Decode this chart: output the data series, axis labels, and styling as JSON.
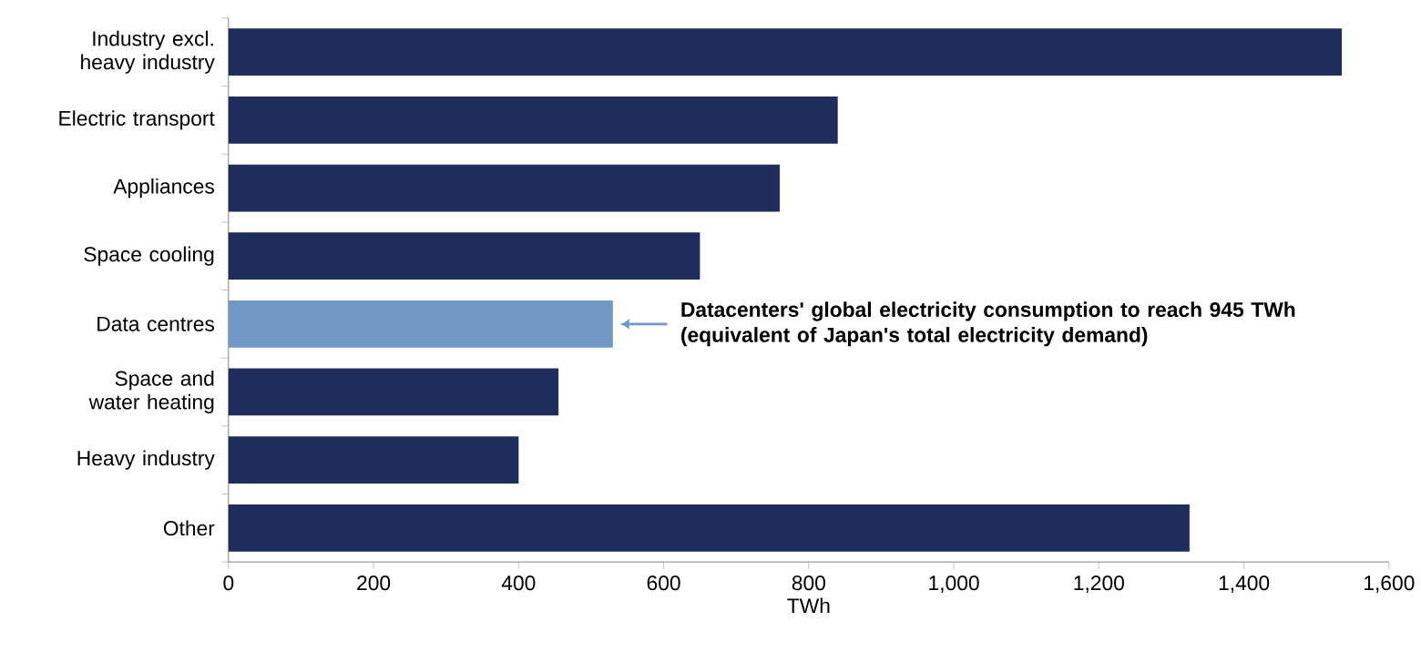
{
  "chart_data": {
    "type": "bar",
    "orientation": "horizontal",
    "categories": [
      "Industry excl. heavy industry",
      "Electric transport",
      "Appliances",
      "Space cooling",
      "Data centres",
      "Space and water heating",
      "Heavy industry",
      "Other"
    ],
    "values": [
      1535,
      840,
      760,
      650,
      530,
      455,
      400,
      1325
    ],
    "colors": [
      "#1f2d5c",
      "#1f2d5c",
      "#1f2d5c",
      "#1f2d5c",
      "#7099c5",
      "#1f2d5c",
      "#1f2d5c",
      "#1f2d5c"
    ],
    "xlabel": "TWh",
    "xlim": [
      0,
      1600
    ],
    "xticks": [
      0,
      200,
      400,
      600,
      800,
      {
        "value": 1000,
        "label": "1,000"
      },
      {
        "value": 1200,
        "label": "1,200"
      },
      {
        "value": 1400,
        "label": "1,400"
      },
      {
        "value": 1600,
        "label": "1,600"
      }
    ],
    "annotations": [
      {
        "text": "Datacenters' global electricity consumption to reach 945 TWh (equivalent of Japan's total electricity demand)",
        "x": 530,
        "y": "Data centres"
      }
    ],
    "grid": false
  }
}
